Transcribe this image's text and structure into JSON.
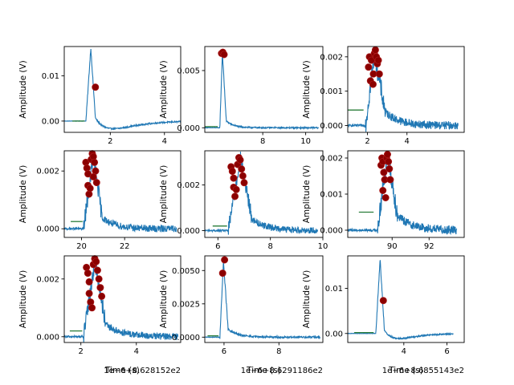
{
  "figure": {
    "colors": {
      "signal": "#1f77b4",
      "baseline": "#2a7d3a",
      "peak": "#8b0000",
      "peak_edge": "#b22222"
    }
  },
  "chart_data": [
    {
      "type": "line",
      "ylabel": "Amplitude (V)",
      "xlabel": "",
      "x_offset_text": "",
      "xlim": [
        0.3,
        4.6
      ],
      "ylim": [
        -0.0025,
        0.0165
      ],
      "xticks": [
        2,
        4
      ],
      "xtick_labels": [
        "2",
        "4"
      ],
      "yticks": [
        0.0,
        0.01
      ],
      "ytick_labels": [
        "0.00",
        "0.01"
      ],
      "pulse": {
        "start": 1.1,
        "peak_t": 1.28,
        "peak": 0.0162,
        "fall": 1.45,
        "tail": 0.0007,
        "decay": 0.35,
        "undershoot": -0.0018,
        "end": 4.6,
        "noise": 0.00015
      },
      "baseline": {
        "x0": 0.6,
        "x1": 1.05,
        "y": 0.0
      },
      "peaks": [
        [
          1.45,
          0.0075
        ]
      ]
    },
    {
      "type": "line",
      "ylabel": "Amplitude (V)",
      "xlabel": "",
      "x_offset_text": "",
      "xlim": [
        5.3,
        10.8
      ],
      "ylim": [
        -0.0004,
        0.0071
      ],
      "xticks": [
        8,
        10
      ],
      "xtick_labels": [
        "8",
        "10"
      ],
      "yticks": [
        0.0,
        0.005
      ],
      "ytick_labels": [
        "0.000",
        "0.005"
      ],
      "pulse": {
        "start": 6.0,
        "peak_t": 6.12,
        "peak": 0.0066,
        "fall": 6.3,
        "tail": 0.0006,
        "decay": 0.35,
        "undershoot": 0.0,
        "end": 10.6,
        "noise": 6e-05
      },
      "baseline": {
        "x0": 5.3,
        "x1": 5.9,
        "y": 0.0001
      },
      "peaks": [
        [
          6.08,
          0.0065
        ],
        [
          6.14,
          0.0066
        ],
        [
          6.2,
          0.0064
        ]
      ]
    },
    {
      "type": "line",
      "ylabel": "Amplitude (V)",
      "xlabel": "",
      "x_offset_text": "",
      "xlim": [
        1.0,
        6.9
      ],
      "ylim": [
        -0.0002,
        0.0023
      ],
      "xticks": [
        2,
        4
      ],
      "xtick_labels": [
        "2",
        "4"
      ],
      "yticks": [
        0.0,
        0.001,
        0.002
      ],
      "ytick_labels": [
        "0.000",
        "0.001",
        "0.002"
      ],
      "pulse": {
        "start": 1.9,
        "peak_t": 2.35,
        "peak": 0.0021,
        "fall": 2.9,
        "tail": 0.0004,
        "decay": 0.7,
        "undershoot": 0.0,
        "end": 6.6,
        "noise": 0.00012
      },
      "baseline": {
        "x0": 1.0,
        "x1": 1.8,
        "y": 0.00045
      },
      "peaks": [
        [
          2.05,
          0.0017
        ],
        [
          2.1,
          0.002
        ],
        [
          2.2,
          0.0019
        ],
        [
          2.3,
          0.0015
        ],
        [
          2.35,
          0.0021
        ],
        [
          2.4,
          0.0022
        ],
        [
          2.45,
          0.002
        ],
        [
          2.5,
          0.0018
        ],
        [
          2.55,
          0.0019
        ],
        [
          2.6,
          0.0015
        ],
        [
          2.15,
          0.0013
        ],
        [
          2.28,
          0.0012
        ]
      ]
    },
    {
      "type": "line",
      "ylabel": "Amplitude (V)",
      "xlabel": "",
      "x_offset_text": "",
      "xlim": [
        19.2,
        24.6
      ],
      "ylim": [
        -0.0003,
        0.0027
      ],
      "xticks": [
        20,
        22
      ],
      "xtick_labels": [
        "20",
        "22"
      ],
      "yticks": [
        0.0,
        0.002
      ],
      "ytick_labels": [
        "0.000",
        "0.002"
      ],
      "pulse": {
        "start": 20.1,
        "peak_t": 20.55,
        "peak": 0.0026,
        "fall": 20.95,
        "tail": 0.0004,
        "decay": 0.6,
        "undershoot": 0.0,
        "end": 24.4,
        "noise": 0.00012
      },
      "baseline": {
        "x0": 19.5,
        "x1": 20.05,
        "y": 0.00025
      },
      "peaks": [
        [
          20.2,
          0.0023
        ],
        [
          20.25,
          0.0021
        ],
        [
          20.3,
          0.0019
        ],
        [
          20.3,
          0.0015
        ],
        [
          20.35,
          0.0012
        ],
        [
          20.45,
          0.0024
        ],
        [
          20.5,
          0.0026
        ],
        [
          20.55,
          0.0025
        ],
        [
          20.6,
          0.0023
        ],
        [
          20.65,
          0.002
        ],
        [
          20.7,
          0.0016
        ],
        [
          20.55,
          0.0018
        ],
        [
          20.4,
          0.0014
        ]
      ]
    },
    {
      "type": "line",
      "ylabel": "Amplitude (V)",
      "xlabel": "",
      "x_offset_text": "",
      "xlim": [
        5.5,
        10.0
      ],
      "ylim": [
        -0.0003,
        0.0035
      ],
      "xticks": [
        6,
        8,
        10
      ],
      "xtick_labels": [
        "6",
        "8",
        "10"
      ],
      "yticks": [
        0.0,
        0.002
      ],
      "ytick_labels": [
        "0.000",
        "0.002"
      ],
      "pulse": {
        "start": 6.4,
        "peak_t": 6.85,
        "peak": 0.0032,
        "fall": 7.3,
        "tail": 0.0005,
        "decay": 0.6,
        "undershoot": 0.0,
        "end": 9.8,
        "noise": 0.00014
      },
      "baseline": {
        "x0": 5.8,
        "x1": 6.35,
        "y": 0.0002
      },
      "peaks": [
        [
          6.5,
          0.0028
        ],
        [
          6.55,
          0.0026
        ],
        [
          6.6,
          0.0023
        ],
        [
          6.6,
          0.0019
        ],
        [
          6.65,
          0.0015
        ],
        [
          6.75,
          0.0029
        ],
        [
          6.8,
          0.0032
        ],
        [
          6.85,
          0.0031
        ],
        [
          6.9,
          0.0027
        ],
        [
          6.95,
          0.0024
        ],
        [
          7.0,
          0.0021
        ],
        [
          6.7,
          0.0018
        ]
      ]
    },
    {
      "type": "line",
      "ylabel": "Amplitude (V)",
      "xlabel": "",
      "x_offset_text": "",
      "xlim": [
        87.6,
        93.9
      ],
      "ylim": [
        -0.0002,
        0.0022
      ],
      "xticks": [
        90,
        92
      ],
      "xtick_labels": [
        "90",
        "92"
      ],
      "yticks": [
        0.0,
        0.001,
        0.002
      ],
      "ytick_labels": [
        "0.000",
        "0.001",
        "0.002"
      ],
      "pulse": {
        "start": 89.2,
        "peak_t": 89.75,
        "peak": 0.0021,
        "fall": 90.3,
        "tail": 0.0004,
        "decay": 0.8,
        "undershoot": 0.0,
        "end": 93.5,
        "noise": 0.00012
      },
      "baseline": {
        "x0": 88.2,
        "x1": 89.0,
        "y": 0.0005
      },
      "peaks": [
        [
          89.4,
          0.0018
        ],
        [
          89.45,
          0.002
        ],
        [
          89.5,
          0.0019
        ],
        [
          89.55,
          0.0016
        ],
        [
          89.6,
          0.0014
        ],
        [
          89.7,
          0.002
        ],
        [
          89.75,
          0.0021
        ],
        [
          89.8,
          0.0019
        ],
        [
          89.85,
          0.0017
        ],
        [
          89.9,
          0.0014
        ],
        [
          89.5,
          0.0011
        ],
        [
          89.65,
          0.0009
        ]
      ]
    },
    {
      "type": "line",
      "ylabel": "Amplitude (V)",
      "xlabel": "Time (s)",
      "x_offset_text": "1e−6+8.628152e2",
      "xlim": [
        1.4,
        5.6
      ],
      "ylim": [
        -0.0002,
        0.0028
      ],
      "xticks": [
        2,
        4
      ],
      "xtick_labels": [
        "2",
        "4"
      ],
      "yticks": [
        0.0,
        0.002
      ],
      "ytick_labels": [
        "0.000",
        "0.002"
      ],
      "pulse": {
        "start": 2.1,
        "peak_t": 2.5,
        "peak": 0.0026,
        "fall": 2.9,
        "tail": 0.0004,
        "decay": 0.6,
        "undershoot": 0.0,
        "end": 5.5,
        "noise": 0.00012
      },
      "baseline": {
        "x0": 1.6,
        "x1": 2.05,
        "y": 0.0002
      },
      "peaks": [
        [
          2.2,
          0.0024
        ],
        [
          2.25,
          0.0022
        ],
        [
          2.3,
          0.0019
        ],
        [
          2.3,
          0.0015
        ],
        [
          2.35,
          0.0012
        ],
        [
          2.4,
          0.001
        ],
        [
          2.45,
          0.0025
        ],
        [
          2.5,
          0.0027
        ],
        [
          2.55,
          0.0026
        ],
        [
          2.6,
          0.0023
        ],
        [
          2.65,
          0.002
        ],
        [
          2.7,
          0.0017
        ],
        [
          2.75,
          0.0014
        ]
      ]
    },
    {
      "type": "line",
      "ylabel": "Amplitude (V)",
      "xlabel": "Time (s)",
      "x_offset_text": "1e−6+8.6291186e2",
      "xlim": [
        5.3,
        9.6
      ],
      "ylim": [
        -0.0004,
        0.0061
      ],
      "xticks": [
        6,
        8
      ],
      "xtick_labels": [
        "6",
        "8"
      ],
      "yticks": [
        0.0,
        0.0025,
        0.005
      ],
      "ytick_labels": [
        "0.0000",
        "0.0025",
        "0.0050"
      ],
      "pulse": {
        "start": 5.85,
        "peak_t": 5.98,
        "peak": 0.0057,
        "fall": 6.15,
        "tail": 0.0006,
        "decay": 0.35,
        "undershoot": 0.0,
        "end": 9.5,
        "noise": 7e-05
      },
      "baseline": {
        "x0": 5.4,
        "x1": 5.8,
        "y": 0.0001
      },
      "peaks": [
        [
          5.95,
          0.0048
        ],
        [
          6.02,
          0.0058
        ]
      ]
    },
    {
      "type": "line",
      "ylabel": "Amplitude (V)",
      "xlabel": "Time (s)",
      "x_offset_text": "1e−6+8.6855143e2",
      "xlim": [
        1.4,
        6.8
      ],
      "ylim": [
        -0.002,
        0.0172
      ],
      "xticks": [
        4,
        6
      ],
      "xtick_labels": [
        "4",
        "6"
      ],
      "yticks": [
        0.0,
        0.01
      ],
      "ytick_labels": [
        "0.00",
        "0.01"
      ],
      "pulse": {
        "start": 2.7,
        "peak_t": 2.9,
        "peak": 0.0165,
        "fall": 3.1,
        "tail": 0.0007,
        "decay": 0.35,
        "undershoot": -0.0012,
        "end": 6.3,
        "noise": 0.00015
      },
      "baseline": {
        "x0": 1.7,
        "x1": 2.6,
        "y": 0.0002
      },
      "peaks": [
        [
          3.05,
          0.0073
        ]
      ]
    }
  ]
}
